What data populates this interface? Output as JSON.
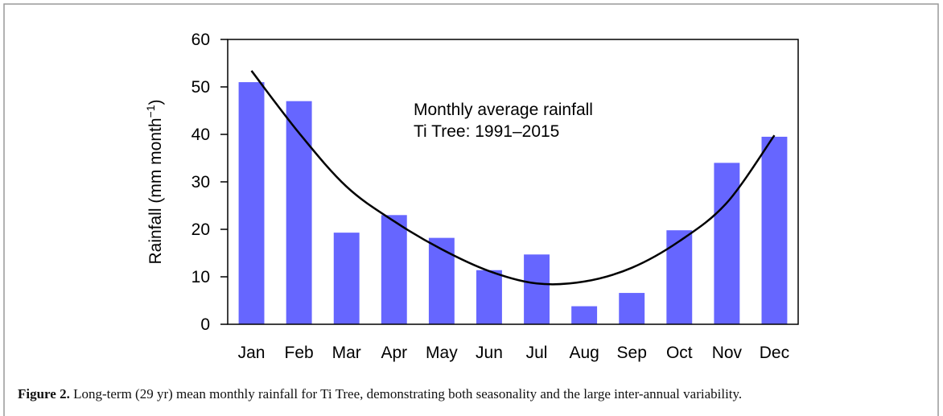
{
  "chart_data": {
    "type": "bar",
    "categories": [
      "Jan",
      "Feb",
      "Mar",
      "Apr",
      "May",
      "Jun",
      "Jul",
      "Aug",
      "Sep",
      "Oct",
      "Nov",
      "Dec"
    ],
    "series": [
      {
        "type": "bar",
        "color": "#6666ff",
        "values": [
          51,
          47,
          19.3,
          23,
          18.2,
          11.4,
          14.7,
          3.8,
          6.6,
          19.8,
          34,
          39.5
        ]
      },
      {
        "type": "line",
        "color": "#000000",
        "values": [
          53.4,
          40.3,
          29,
          21.7,
          15.8,
          11.2,
          8.6,
          9,
          11.9,
          17.5,
          25.6,
          39.8
        ]
      }
    ],
    "y_label": {
      "text": "Rainfall (mm month",
      "superscript": "−1",
      "suffix": ")"
    },
    "annotation": [
      "Monthly average rainfall",
      "Ti Tree:  1991–2015"
    ],
    "ylim": [
      0,
      60
    ],
    "yticks": [
      0,
      10,
      20,
      30,
      40,
      50,
      60
    ]
  },
  "caption": {
    "label": "Figure 2.",
    "text": " Long-term (29 yr) mean monthly rainfall for Ti Tree, demonstrating both seasonality and the large inter-annual variability."
  }
}
